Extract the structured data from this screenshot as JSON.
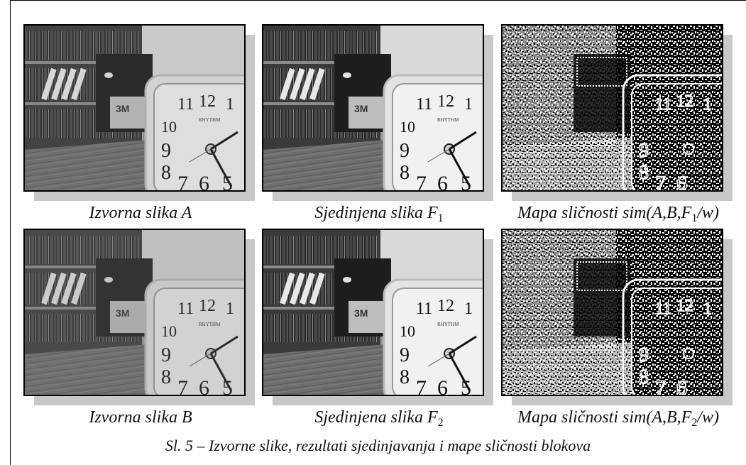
{
  "figure": {
    "caption": "Sl. 5 – Izvorne slike, rezultati sjedinjavanja i mape sličnosti blokova"
  },
  "panels": [
    {
      "caption": "Izvorna slika A",
      "clock": {
        "brand": "RHYTHM",
        "numerals": [
          "11",
          "12",
          "1",
          "10",
          "9",
          "8",
          "7",
          "6",
          "5"
        ]
      },
      "box_label": "3M"
    },
    {
      "caption_main": "Sjedinjena slika F",
      "caption_sub": "1",
      "clock": {
        "brand": "RHYTHM",
        "numerals": [
          "11",
          "12",
          "1",
          "10",
          "9",
          "8",
          "7",
          "6",
          "5"
        ]
      },
      "box_label": "3M"
    },
    {
      "caption_main": "Mapa sličnosti sim(A,B,F",
      "caption_sub": "1",
      "caption_tail": "/w)"
    },
    {
      "caption": "Izvorna slika B",
      "clock": {
        "brand": "RHYTHM",
        "numerals": [
          "11",
          "12",
          "1",
          "10",
          "9",
          "8",
          "7",
          "6",
          "5"
        ]
      },
      "box_label": "3M"
    },
    {
      "caption_main": "Sjedinjena slika F",
      "caption_sub": "2",
      "clock": {
        "brand": "RHYTHM",
        "numerals": [
          "11",
          "12",
          "1",
          "10",
          "9",
          "8",
          "7",
          "6",
          "5"
        ]
      },
      "box_label": "3M"
    },
    {
      "caption_main": "Mapa sličnosti sim(A,B,F",
      "caption_sub": "2",
      "caption_tail": "/w)"
    }
  ]
}
